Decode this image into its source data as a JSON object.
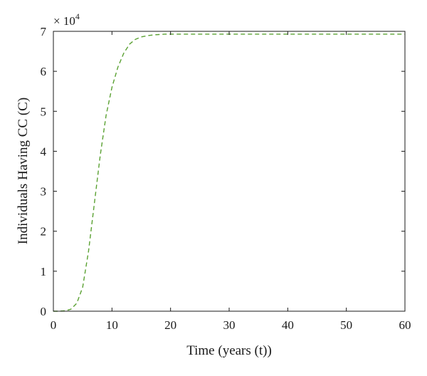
{
  "chart_data": {
    "type": "line",
    "title": "",
    "xlabel": "Time (years (t))",
    "ylabel": "Individuals Having CC (C)",
    "y_multiplier": {
      "base": "× 10",
      "exponent": "4"
    },
    "xlim": [
      0,
      60
    ],
    "ylim": [
      0,
      7
    ],
    "x_ticks": [
      "0",
      "10",
      "20",
      "30",
      "40",
      "50",
      "60"
    ],
    "y_ticks": [
      "0",
      "1",
      "2",
      "3",
      "4",
      "5",
      "6",
      "7"
    ],
    "grid": false,
    "legend": "none",
    "series": [
      {
        "color": "#5aa132",
        "line_style": "dashed",
        "x": [
          0,
          1,
          2,
          3,
          4,
          5,
          6,
          7,
          8,
          9,
          10,
          11,
          12,
          13,
          14,
          15,
          16,
          17,
          18,
          19,
          20,
          22,
          25,
          30,
          35,
          40,
          45,
          50,
          55,
          60
        ],
        "y": [
          0,
          0,
          0.01,
          0.05,
          0.2,
          0.6,
          1.5,
          2.7,
          3.9,
          4.9,
          5.6,
          6.1,
          6.45,
          6.68,
          6.8,
          6.86,
          6.89,
          6.91,
          6.92,
          6.93,
          6.93,
          6.93,
          6.93,
          6.93,
          6.93,
          6.93,
          6.93,
          6.93,
          6.93,
          6.93
        ]
      }
    ]
  }
}
